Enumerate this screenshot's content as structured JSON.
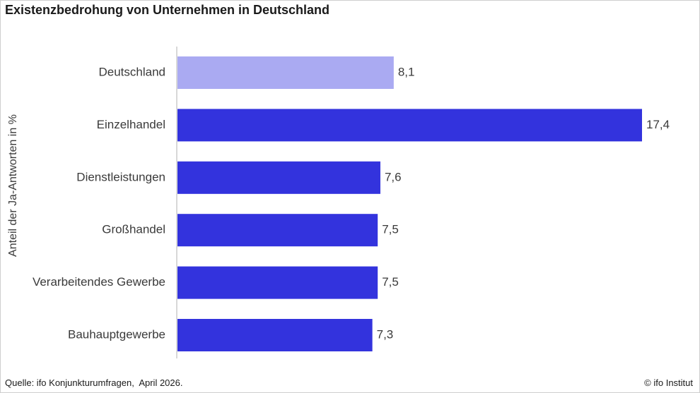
{
  "title": "Existenzbedrohung von Unternehmen in Deutschland",
  "footer": {
    "source": "Quelle: ifo Konjunkturumfragen,  April 2026.",
    "credit": "© ifo Institut"
  },
  "chart_data": {
    "type": "bar",
    "orientation": "horizontal",
    "title": "Existenzbedrohung von Unternehmen in Deutschland",
    "ylabel": "Anteil der Ja-Antworten in %",
    "xlabel": "",
    "categories": [
      "Deutschland",
      "Einzelhandel",
      "Dienstleistungen",
      "Großhandel",
      "Verarbeitendes Gewerbe",
      "Bauhauptgewerbe"
    ],
    "values": [
      8.1,
      17.4,
      7.6,
      7.5,
      7.5,
      7.3
    ],
    "value_labels": [
      "8,1",
      "17,4",
      "7,6",
      "7,5",
      "7,5",
      "7,3"
    ],
    "xlim": [
      0,
      17.4
    ],
    "grid": false,
    "colors": {
      "highlight": "#aaaaf2",
      "default": "#3333dd",
      "axis": "#b0b0b0"
    },
    "highlight_index": 0
  }
}
